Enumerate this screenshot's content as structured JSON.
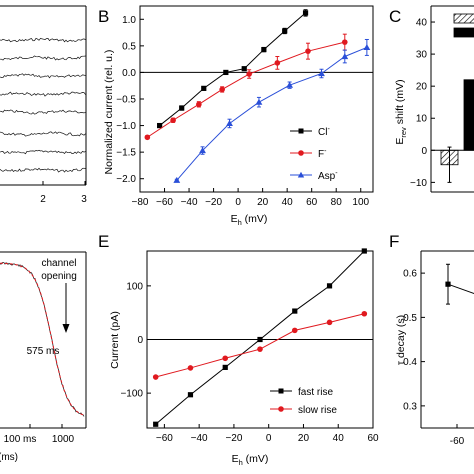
{
  "panels": {
    "a": {
      "x_ticks": [
        "2",
        "3"
      ],
      "trace_count": 8
    },
    "b": {
      "letter": "B",
      "ylabel": "Normalized current (rel. u.)",
      "xlabel_main": "E",
      "xlabel_sub": "h",
      "xlabel_unit": " (mV)",
      "legend": [
        {
          "label": "Cl",
          "sup": "-",
          "marker": "square",
          "color": "#000000"
        },
        {
          "label": "F",
          "sup": "-",
          "marker": "circle",
          "color": "#e0191f"
        },
        {
          "label": "Asp",
          "sup": "-",
          "marker": "triangle",
          "color": "#2a4fd8"
        }
      ]
    },
    "c": {
      "letter": "C",
      "ylabel_main": "E",
      "ylabel_sub": "rev",
      "ylabel_unit": " shift (mV)",
      "y_ticks": [
        "40",
        "30",
        "20",
        "10",
        "0",
        "-10"
      ]
    },
    "d": {
      "annotation_line1": "channel",
      "annotation_line2": "opening",
      "time_label": "575 ms",
      "x_ticks": [
        "100 ms",
        "1000"
      ],
      "x_unit": "(ms)"
    },
    "e": {
      "letter": "E",
      "ylabel": "Current (pA)",
      "xlabel_main": "E",
      "xlabel_sub": "h",
      "xlabel_unit": " (mV)",
      "legend": [
        {
          "label": "fast rise",
          "marker": "square",
          "color": "#000000"
        },
        {
          "label": "slow rise",
          "marker": "circle",
          "color": "#e0191f"
        }
      ]
    },
    "f": {
      "letter": "F",
      "ylabel": "τ decay (s)",
      "y_ticks": [
        "0.6",
        "0.5",
        "0.4",
        "0.3"
      ],
      "x_ticks": [
        "-60"
      ]
    }
  },
  "chart_data": [
    {
      "panel": "B",
      "type": "line",
      "xlabel": "Eh (mV)",
      "ylabel": "Normalized current (rel. u.)",
      "xlim": [
        -80,
        110
      ],
      "ylim": [
        -2.25,
        1.25
      ],
      "x_ticks": [
        -80,
        -60,
        -40,
        -20,
        0,
        20,
        40,
        60,
        80,
        100
      ],
      "y_ticks": [
        1.0,
        0.5,
        0.0,
        -0.5,
        -1.0,
        -1.5,
        -2.0
      ],
      "grid": false,
      "legend_position": "bottom-right",
      "series": [
        {
          "name": "Cl-",
          "color": "#000000",
          "marker": "square",
          "x": [
            -64,
            -46,
            -28,
            -10,
            5,
            21,
            38,
            55
          ],
          "y": [
            -1.0,
            -0.67,
            -0.3,
            0.0,
            0.07,
            0.43,
            0.78,
            1.12
          ],
          "err": [
            0.03,
            0.04,
            0.03,
            0.02,
            0.03,
            0.04,
            0.05,
            0.06
          ]
        },
        {
          "name": "F-",
          "color": "#e0191f",
          "marker": "circle",
          "x": [
            -74,
            -53,
            -32,
            -13,
            9,
            32,
            57,
            87
          ],
          "y": [
            -1.22,
            -0.9,
            -0.6,
            -0.32,
            -0.03,
            0.18,
            0.4,
            0.57
          ],
          "err": [
            0.03,
            0.04,
            0.05,
            0.05,
            0.08,
            0.12,
            0.15,
            0.15
          ]
        },
        {
          "name": "Asp-",
          "color": "#2a4fd8",
          "marker": "triangle",
          "x": [
            -50,
            -29,
            -7,
            17,
            42,
            68,
            87,
            105
          ],
          "y": [
            -2.03,
            -1.47,
            -0.96,
            -0.56,
            -0.24,
            -0.02,
            0.3,
            0.47
          ],
          "err": [
            0.02,
            0.07,
            0.08,
            0.09,
            0.06,
            0.08,
            0.12,
            0.15
          ]
        }
      ]
    },
    {
      "panel": "E",
      "type": "line",
      "xlabel": "Eh (mV)",
      "ylabel": "Current (pA)",
      "xlim": [
        -70,
        60
      ],
      "ylim": [
        -165,
        165
      ],
      "x_ticks": [
        -60,
        -40,
        -20,
        0,
        20,
        40,
        60
      ],
      "y_ticks": [
        100,
        0,
        -100
      ],
      "grid": false,
      "legend_position": "bottom-right",
      "series": [
        {
          "name": "fast rise",
          "color": "#000000",
          "marker": "square",
          "x": [
            -65,
            -45,
            -25,
            -5,
            15,
            35,
            55
          ],
          "y": [
            -158,
            -103,
            -52,
            0,
            53,
            100,
            165
          ]
        },
        {
          "name": "slow rise",
          "color": "#e0191f",
          "marker": "circle",
          "x": [
            -65,
            -45,
            -25,
            -5,
            15,
            35,
            55
          ],
          "y": [
            -70,
            -53,
            -35,
            -18,
            17,
            32,
            48
          ]
        }
      ]
    },
    {
      "panel": "C",
      "type": "bar",
      "ylabel": "Erev shift (mV)",
      "ylim": [
        -13,
        45
      ],
      "y_ticks": [
        40,
        30,
        20,
        10,
        0,
        -10
      ],
      "categories": [
        "hatched",
        "solid"
      ],
      "values": [
        -4.5,
        22
      ],
      "errors": [
        5.5,
        0
      ]
    },
    {
      "panel": "F",
      "type": "line",
      "ylabel": "τ decay (s)",
      "ylim": [
        0.25,
        0.65
      ],
      "y_ticks": [
        0.6,
        0.5,
        0.4,
        0.3
      ],
      "x": [
        -60
      ],
      "y": [
        0.575
      ],
      "err": [
        0.045
      ]
    }
  ]
}
